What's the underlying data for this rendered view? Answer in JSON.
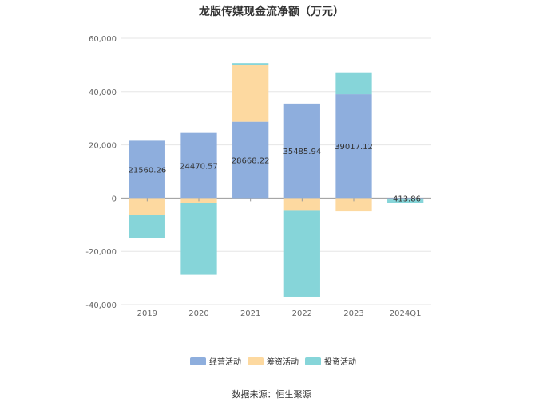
{
  "chart_data": {
    "type": "bar",
    "stacked": true,
    "title": "龙版传媒现金流净额（万元）",
    "categories": [
      "2019",
      "2020",
      "2021",
      "2022",
      "2023",
      "2024Q1"
    ],
    "series": [
      {
        "name": "经营活动",
        "color": "#8eaedd",
        "values": [
          21560.26,
          24470.57,
          28668.22,
          35485.94,
          39017.12,
          -413.86
        ]
      },
      {
        "name": "筹资活动",
        "color": "#fdd9a0",
        "values": [
          -6200,
          -1800,
          21200,
          -4500,
          -5000,
          -100
        ]
      },
      {
        "name": "投资活动",
        "color": "#86d5d9",
        "values": [
          -8800,
          -27000,
          800,
          -32500,
          8200,
          -1300
        ]
      }
    ],
    "data_labels": [
      "21560.26",
      "24470.57",
      "28668.22",
      "35485.94",
      "39017.12",
      "-413.86"
    ],
    "ylim": [
      -40000,
      60000
    ],
    "yticks": [
      -40000,
      -20000,
      0,
      20000,
      40000,
      60000
    ],
    "ytick_labels": [
      "-40,000",
      "-20,000",
      "0",
      "20,000",
      "40,000",
      "60,000"
    ],
    "grid": true,
    "legend_position": "bottom"
  },
  "source_text": "数据来源：恒生聚源"
}
